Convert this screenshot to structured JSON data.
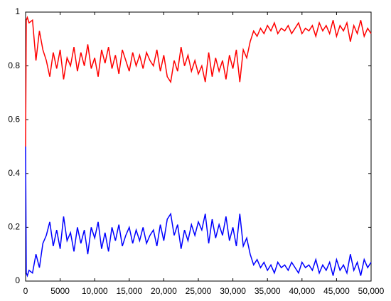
{
  "chart_data": {
    "type": "line",
    "x": [
      0,
      100,
      250,
      500,
      1000,
      1500,
      2000,
      2500,
      3000,
      3500,
      4000,
      4500,
      5000,
      5500,
      6000,
      6500,
      7000,
      7500,
      8000,
      8500,
      9000,
      9500,
      10000,
      10500,
      11000,
      11500,
      12000,
      12500,
      13000,
      13500,
      14000,
      14500,
      15000,
      15500,
      16000,
      16500,
      17000,
      17500,
      18000,
      18500,
      19000,
      19500,
      20000,
      20500,
      21000,
      21500,
      22000,
      22500,
      23000,
      23500,
      24000,
      24500,
      25000,
      25500,
      26000,
      26500,
      27000,
      27500,
      28000,
      28500,
      29000,
      29500,
      30000,
      30500,
      31000,
      31500,
      32000,
      32500,
      33000,
      33500,
      34000,
      34500,
      35000,
      35500,
      36000,
      36500,
      37000,
      37500,
      38000,
      38500,
      39000,
      39500,
      40000,
      40500,
      41000,
      41500,
      42000,
      42500,
      43000,
      43500,
      44000,
      44500,
      45000,
      45500,
      46000,
      46500,
      47000,
      47500,
      48000,
      48500,
      49000,
      49500,
      50000
    ],
    "series": [
      {
        "color": "#ff0000",
        "values": [
          0.5,
          0.97,
          0.98,
          0.96,
          0.97,
          0.82,
          0.93,
          0.86,
          0.82,
          0.76,
          0.85,
          0.79,
          0.86,
          0.75,
          0.83,
          0.8,
          0.87,
          0.78,
          0.85,
          0.8,
          0.88,
          0.79,
          0.83,
          0.76,
          0.86,
          0.81,
          0.87,
          0.79,
          0.84,
          0.77,
          0.86,
          0.82,
          0.78,
          0.85,
          0.8,
          0.84,
          0.79,
          0.85,
          0.82,
          0.8,
          0.86,
          0.78,
          0.84,
          0.76,
          0.74,
          0.82,
          0.78,
          0.87,
          0.8,
          0.84,
          0.78,
          0.82,
          0.77,
          0.8,
          0.74,
          0.85,
          0.76,
          0.83,
          0.78,
          0.82,
          0.75,
          0.84,
          0.79,
          0.86,
          0.74,
          0.86,
          0.83,
          0.89,
          0.93,
          0.91,
          0.94,
          0.92,
          0.95,
          0.93,
          0.96,
          0.92,
          0.94,
          0.93,
          0.95,
          0.92,
          0.94,
          0.96,
          0.92,
          0.94,
          0.93,
          0.95,
          0.91,
          0.96,
          0.93,
          0.95,
          0.92,
          0.97,
          0.91,
          0.95,
          0.93,
          0.96,
          0.89,
          0.95,
          0.92,
          0.97,
          0.91,
          0.94,
          0.92
        ]
      },
      {
        "color": "#0000ff",
        "values": [
          0.5,
          0.03,
          0.02,
          0.04,
          0.03,
          0.1,
          0.05,
          0.14,
          0.17,
          0.22,
          0.13,
          0.19,
          0.12,
          0.24,
          0.15,
          0.18,
          0.11,
          0.2,
          0.14,
          0.19,
          0.1,
          0.2,
          0.16,
          0.22,
          0.12,
          0.18,
          0.11,
          0.2,
          0.15,
          0.21,
          0.13,
          0.17,
          0.2,
          0.14,
          0.19,
          0.15,
          0.2,
          0.14,
          0.17,
          0.19,
          0.13,
          0.21,
          0.15,
          0.23,
          0.25,
          0.17,
          0.21,
          0.12,
          0.19,
          0.15,
          0.21,
          0.17,
          0.22,
          0.19,
          0.25,
          0.14,
          0.23,
          0.16,
          0.21,
          0.17,
          0.24,
          0.15,
          0.2,
          0.13,
          0.25,
          0.13,
          0.16,
          0.1,
          0.06,
          0.08,
          0.05,
          0.07,
          0.04,
          0.06,
          0.03,
          0.07,
          0.05,
          0.06,
          0.04,
          0.07,
          0.05,
          0.03,
          0.07,
          0.05,
          0.06,
          0.04,
          0.08,
          0.03,
          0.06,
          0.04,
          0.07,
          0.02,
          0.08,
          0.04,
          0.06,
          0.03,
          0.1,
          0.04,
          0.07,
          0.02,
          0.08,
          0.05,
          0.07
        ]
      }
    ],
    "xlim": [
      0,
      50000
    ],
    "xticks": [
      0,
      5000,
      {
        "value": 10000,
        "label": "10,000"
      },
      {
        "value": 15000,
        "label": "15,000"
      },
      {
        "value": 20000,
        "label": "20,000"
      },
      {
        "value": 25000,
        "label": "25,000"
      },
      {
        "value": 30000,
        "label": "30,000"
      },
      {
        "value": 35000,
        "label": "35,000"
      },
      {
        "value": 40000,
        "label": "40,000"
      },
      {
        "value": 45000,
        "label": "45,000"
      },
      {
        "value": 50000,
        "label": "50,000"
      }
    ],
    "ylim": [
      0,
      1
    ],
    "yticks": [
      0,
      0.2,
      0.4,
      0.6,
      0.8,
      1
    ]
  }
}
